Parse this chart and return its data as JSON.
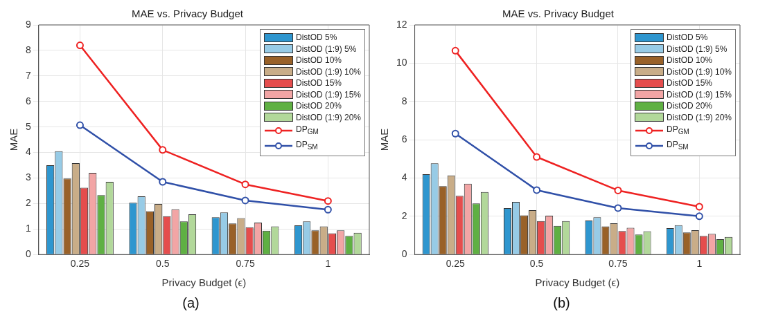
{
  "chart_data": [
    {
      "type": "bar",
      "title": "MAE vs. Privacy Budget",
      "xlabel": "Privacy Budget (ϵ)",
      "ylabel": "MAE",
      "categories": [
        "0.25",
        "0.5",
        "0.75",
        "1"
      ],
      "ylim": [
        0,
        9
      ],
      "yticks": [
        0,
        1,
        2,
        3,
        4,
        5,
        6,
        7,
        8,
        9
      ],
      "grid": true,
      "legend": "top right",
      "annotations": [
        "(a)"
      ],
      "series": [
        {
          "name": "DistOD 5%",
          "color": "#2e96cf",
          "values": [
            3.5,
            2.03,
            1.46,
            1.14
          ]
        },
        {
          "name": "DistOD (1:9) 5%",
          "color": "#97cbe6",
          "values": [
            4.05,
            2.28,
            1.65,
            1.3
          ]
        },
        {
          "name": "DistOD 10%",
          "color": "#996128",
          "values": [
            2.98,
            1.7,
            1.22,
            0.95
          ]
        },
        {
          "name": "DistOD (1:9) 10%",
          "color": "#c9ad88",
          "values": [
            3.58,
            1.98,
            1.43,
            1.1
          ]
        },
        {
          "name": "DistOD 15%",
          "color": "#e54d4d",
          "values": [
            2.62,
            1.5,
            1.07,
            0.83
          ]
        },
        {
          "name": "DistOD (1:9) 15%",
          "color": "#f2a5a5",
          "values": [
            3.2,
            1.77,
            1.25,
            0.95
          ]
        },
        {
          "name": "DistOD 20%",
          "color": "#5fb043",
          "values": [
            2.33,
            1.3,
            0.93,
            0.73
          ]
        },
        {
          "name": "DistOD (1:9) 20%",
          "color": "#b2d89a",
          "values": [
            2.85,
            1.58,
            1.1,
            0.85
          ]
        },
        {
          "name": "DP$_{GM}$",
          "type": "line",
          "marker": "circle",
          "line_style": "solid",
          "color": "#ee2222",
          "values": [
            8.2,
            4.1,
            2.75,
            2.1
          ]
        },
        {
          "name": "DP$_{SM}$",
          "type": "line",
          "marker": "circle",
          "line_style": "solid",
          "color": "#3050a8",
          "values": [
            5.07,
            2.85,
            2.12,
            1.76
          ]
        }
      ]
    },
    {
      "type": "bar",
      "title": "MAE vs. Privacy Budget",
      "xlabel": "Privacy Budget (ϵ)",
      "ylabel": "MAE",
      "categories": [
        "0.25",
        "0.5",
        "0.75",
        "1"
      ],
      "ylim": [
        0,
        12
      ],
      "yticks": [
        0,
        2,
        4,
        6,
        8,
        10,
        12
      ],
      "grid": true,
      "legend": "top right",
      "annotations": [
        "(b)"
      ],
      "series": [
        {
          "name": "DistOD 5%",
          "color": "#2e96cf",
          "values": [
            4.2,
            2.43,
            1.78,
            1.38
          ]
        },
        {
          "name": "DistOD (1:9) 5%",
          "color": "#97cbe6",
          "values": [
            4.77,
            2.75,
            1.95,
            1.53
          ]
        },
        {
          "name": "DistOD 10%",
          "color": "#996128",
          "values": [
            3.57,
            2.05,
            1.47,
            1.15
          ]
        },
        {
          "name": "DistOD (1:9) 10%",
          "color": "#c9ad88",
          "values": [
            4.13,
            2.32,
            1.63,
            1.27
          ]
        },
        {
          "name": "DistOD 15%",
          "color": "#e54d4d",
          "values": [
            3.07,
            1.75,
            1.23,
            0.97
          ]
        },
        {
          "name": "DistOD (1:9) 15%",
          "color": "#f2a5a5",
          "values": [
            3.7,
            2.03,
            1.4,
            1.08
          ]
        },
        {
          "name": "DistOD 20%",
          "color": "#5fb043",
          "values": [
            2.67,
            1.5,
            1.05,
            0.8
          ]
        },
        {
          "name": "DistOD (1:9) 20%",
          "color": "#b2d89a",
          "values": [
            3.27,
            1.75,
            1.22,
            0.92
          ]
        },
        {
          "name": "DP$_{GM}$",
          "type": "line",
          "marker": "circle",
          "line_style": "solid",
          "color": "#ee2222",
          "values": [
            10.65,
            5.1,
            3.35,
            2.5
          ]
        },
        {
          "name": "DP$_{SM}$",
          "type": "line",
          "marker": "circle",
          "line_style": "solid",
          "color": "#3050a8",
          "values": [
            6.32,
            3.37,
            2.43,
            2.0
          ]
        }
      ]
    }
  ]
}
